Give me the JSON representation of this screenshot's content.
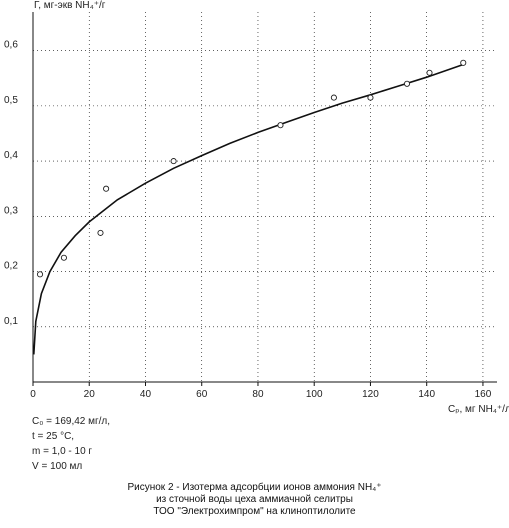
{
  "chart_data": {
    "type": "scatter",
    "ylabel": "Г, мг-экв NH₄⁺/г",
    "xlabel": "Cₚ, мг NH₄⁺/л",
    "xlim": [
      0,
      165
    ],
    "ylim": [
      0,
      0.67
    ],
    "x_ticks": [
      {
        "value": 0,
        "label": "0"
      },
      {
        "value": 20,
        "label": "20"
      },
      {
        "value": 40,
        "label": "40"
      },
      {
        "value": 60,
        "label": "60"
      },
      {
        "value": 80,
        "label": "80"
      },
      {
        "value": 100,
        "label": "100"
      },
      {
        "value": 120,
        "label": "120"
      },
      {
        "value": 140,
        "label": "140"
      },
      {
        "value": 160,
        "label": "160"
      }
    ],
    "y_ticks": [
      {
        "value": 0.1,
        "label": "0,1"
      },
      {
        "value": 0.2,
        "label": "0,2"
      },
      {
        "value": 0.3,
        "label": "0,3"
      },
      {
        "value": 0.4,
        "label": "0,4"
      },
      {
        "value": 0.5,
        "label": "0,5"
      },
      {
        "value": 0.6,
        "label": "0,6"
      }
    ],
    "grid": true,
    "points": [
      {
        "x": 2.5,
        "y": 0.195
      },
      {
        "x": 11,
        "y": 0.225
      },
      {
        "x": 24,
        "y": 0.27
      },
      {
        "x": 26,
        "y": 0.35
      },
      {
        "x": 50,
        "y": 0.4
      },
      {
        "x": 88,
        "y": 0.465
      },
      {
        "x": 107,
        "y": 0.515
      },
      {
        "x": 120,
        "y": 0.515
      },
      {
        "x": 133,
        "y": 0.54
      },
      {
        "x": 141,
        "y": 0.56
      },
      {
        "x": 153,
        "y": 0.578
      }
    ],
    "fit_curve": [
      {
        "x": 0.3,
        "y": 0.05
      },
      {
        "x": 1,
        "y": 0.11
      },
      {
        "x": 3,
        "y": 0.16
      },
      {
        "x": 6,
        "y": 0.2
      },
      {
        "x": 10,
        "y": 0.235
      },
      {
        "x": 15,
        "y": 0.265
      },
      {
        "x": 20,
        "y": 0.29
      },
      {
        "x": 30,
        "y": 0.33
      },
      {
        "x": 40,
        "y": 0.36
      },
      {
        "x": 50,
        "y": 0.387
      },
      {
        "x": 60,
        "y": 0.41
      },
      {
        "x": 70,
        "y": 0.432
      },
      {
        "x": 80,
        "y": 0.452
      },
      {
        "x": 90,
        "y": 0.47
      },
      {
        "x": 100,
        "y": 0.488
      },
      {
        "x": 110,
        "y": 0.505
      },
      {
        "x": 120,
        "y": 0.52
      },
      {
        "x": 130,
        "y": 0.536
      },
      {
        "x": 140,
        "y": 0.552
      },
      {
        "x": 153,
        "y": 0.575
      }
    ]
  },
  "conditions": [
    "C₀ = 169,42 мг/л,",
    "t = 25 °C,",
    "m = 1,0 - 10 г",
    "V = 100 мл"
  ],
  "caption": [
    "Рисунок 2 - Изотерма адсорбции ионов аммония NH₄⁺",
    "из сточной воды цеха аммиачной селитры",
    "ТОО \"Электрохимпром\" на клиноптилолите"
  ],
  "colors": {
    "axis": "#111111",
    "grid": "#000000",
    "marker": "#222222",
    "curve": "#111111"
  }
}
